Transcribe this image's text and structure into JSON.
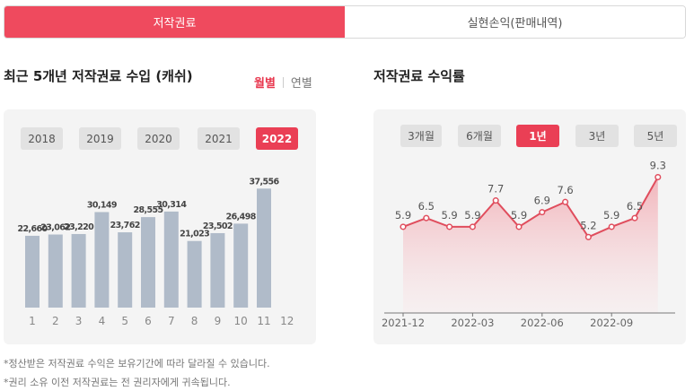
{
  "tabs": [
    {
      "label": "저작권료",
      "active": true
    },
    {
      "label": "실현손익(판매내역)",
      "active": false
    }
  ],
  "left": {
    "title": "최근 5개년 저작권료 수입 (캐쉬)",
    "toggle_on": "월별",
    "toggle_off": "연별",
    "years": [
      "2018",
      "2019",
      "2020",
      "2021",
      "2022"
    ],
    "selected_year": "2022"
  },
  "right": {
    "title": "저작권료 수익률",
    "periods": [
      "3개월",
      "6개월",
      "1년",
      "3년",
      "5년"
    ],
    "selected_period": "1년"
  },
  "notes": [
    "*정산받은 저작권료 수익은 보유기간에 따라 달라질 수 있습니다.",
    "*권리 소유 이전 저작권료는 전 권리자에게 귀속됩니다."
  ],
  "colors": {
    "accent": "#ef4a5e",
    "bar": "#b0bbc9",
    "line": "#e04d5d"
  },
  "chart_data": [
    {
      "type": "bar",
      "categories": [
        "1",
        "2",
        "3",
        "4",
        "5",
        "6",
        "7",
        "8",
        "9",
        "10",
        "11",
        "12"
      ],
      "values": [
        22660,
        23062,
        23220,
        30149,
        23762,
        28555,
        30314,
        21023,
        23502,
        26498,
        37556,
        null
      ],
      "value_labels": [
        "22,660",
        "23,062",
        "23,220",
        "30,149",
        "23,762",
        "28,555",
        "30,314",
        "21,023",
        "23,502",
        "26,498",
        "37,556",
        ""
      ],
      "ylim": [
        0,
        45000
      ]
    },
    {
      "type": "line",
      "points": [
        5.9,
        6.5,
        5.9,
        5.9,
        7.7,
        5.9,
        6.9,
        7.6,
        5.2,
        5.9,
        6.5,
        9.3
      ],
      "point_labels": [
        "5.9",
        "6.5",
        "5.9",
        "5.9",
        "7.7",
        "5.9",
        "6.9",
        "7.6",
        "5.2",
        "5.9",
        "6.5",
        "9.3"
      ],
      "x_tick_labels": [
        "2021-12",
        "2022-03",
        "2022-06",
        "2022-09"
      ],
      "x_tick_index": [
        0,
        3,
        6,
        9
      ],
      "ylim": [
        0,
        10.5
      ]
    }
  ]
}
